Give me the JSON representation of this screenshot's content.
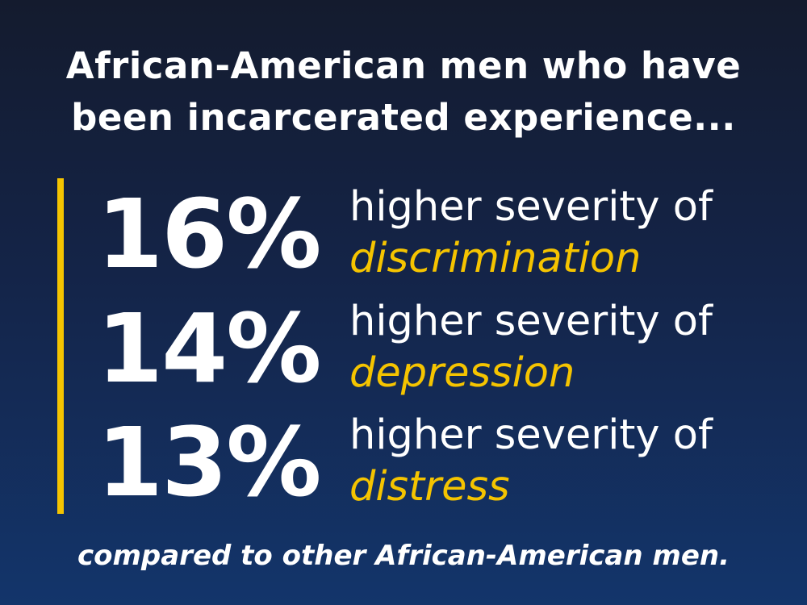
{
  "headline": {
    "line1": "African-American men who have",
    "line2": "been incarcerated experience..."
  },
  "colors": {
    "accent": "#f5c400",
    "text": "#ffffff",
    "background_top": "#141b2e",
    "background_bottom": "#13356b"
  },
  "stats": [
    {
      "value": "16%",
      "prefix": "higher severity of",
      "term": "discrimination"
    },
    {
      "value": "14%",
      "prefix": "higher severity of",
      "term": "depression"
    },
    {
      "value": "13%",
      "prefix": "higher severity of",
      "term": "distress"
    }
  ],
  "footer": {
    "text": "compared to other African-American men."
  }
}
